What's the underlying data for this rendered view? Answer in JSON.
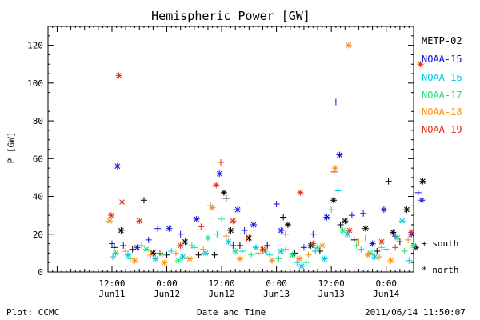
{
  "chart_data": {
    "type": "scatter",
    "title": "Hemispheric Power [GW]",
    "xlabel": "Date and Time",
    "ylabel": "P [GW]",
    "ylim": [
      0,
      130
    ],
    "xlim_hours": [
      -2,
      78
    ],
    "x_unit": "hours since 2011-06-11 00:00",
    "yticks": [
      0,
      20,
      40,
      60,
      80,
      100,
      120
    ],
    "xticks": [
      {
        "x": 12,
        "top": "12:00",
        "bottom": "Jun11"
      },
      {
        "x": 24,
        "top": "0:00",
        "bottom": "Jun12"
      },
      {
        "x": 36,
        "top": "12:00",
        "bottom": "Jun12"
      },
      {
        "x": 48,
        "top": "0:00",
        "bottom": "Jun13"
      },
      {
        "x": 60,
        "top": "12:00",
        "bottom": "Jun13"
      },
      {
        "x": 72,
        "top": "0:00",
        "bottom": "Jun14"
      }
    ],
    "legend_position": "right",
    "marker_legend": {
      "south": "+ south",
      "north": "* north"
    },
    "series": [
      {
        "name": "METP-02",
        "color": "#000000",
        "points": [
          {
            "x": 12.5,
            "y": 13,
            "m": "+"
          },
          {
            "x": 14.0,
            "y": 22,
            "m": "*"
          },
          {
            "x": 16.5,
            "y": 12,
            "m": "+"
          },
          {
            "x": 19.0,
            "y": 38,
            "m": "+"
          },
          {
            "x": 21.0,
            "y": 10,
            "m": "*"
          },
          {
            "x": 24.0,
            "y": 9,
            "m": "+"
          },
          {
            "x": 28.0,
            "y": 16,
            "m": "*"
          },
          {
            "x": 31.0,
            "y": 9,
            "m": "+"
          },
          {
            "x": 33.5,
            "y": 35,
            "m": "+"
          },
          {
            "x": 34.5,
            "y": 9,
            "m": "+"
          },
          {
            "x": 36.5,
            "y": 42,
            "m": "*"
          },
          {
            "x": 37.0,
            "y": 39,
            "m": "+"
          },
          {
            "x": 38.0,
            "y": 22,
            "m": "*"
          },
          {
            "x": 40.0,
            "y": 14,
            "m": "+"
          },
          {
            "x": 42.0,
            "y": 18,
            "m": "*"
          },
          {
            "x": 46.0,
            "y": 14,
            "m": "+"
          },
          {
            "x": 49.5,
            "y": 29,
            "m": "+"
          },
          {
            "x": 50.5,
            "y": 25,
            "m": "*"
          },
          {
            "x": 52.0,
            "y": 10,
            "m": "+"
          },
          {
            "x": 55.5,
            "y": 14,
            "m": "*"
          },
          {
            "x": 57.5,
            "y": 11,
            "m": "+"
          },
          {
            "x": 60.5,
            "y": 38,
            "m": "*"
          },
          {
            "x": 62.0,
            "y": 25,
            "m": "+"
          },
          {
            "x": 63.0,
            "y": 27,
            "m": "*"
          },
          {
            "x": 65.0,
            "y": 17,
            "m": "+"
          },
          {
            "x": 67.5,
            "y": 23,
            "m": "*"
          },
          {
            "x": 70.0,
            "y": 11,
            "m": "+"
          },
          {
            "x": 72.5,
            "y": 48,
            "m": "+"
          },
          {
            "x": 73.5,
            "y": 21,
            "m": "*"
          },
          {
            "x": 75.0,
            "y": 16,
            "m": "+"
          },
          {
            "x": 76.5,
            "y": 33,
            "m": "*"
          },
          {
            "x": 78.5,
            "y": 13,
            "m": "*"
          },
          {
            "x": 80.0,
            "y": 48,
            "m": "*"
          }
        ]
      },
      {
        "name": "NOAA-15",
        "color": "#1010e0",
        "points": [
          {
            "x": 12.0,
            "y": 15,
            "m": "+"
          },
          {
            "x": 13.2,
            "y": 56,
            "m": "*"
          },
          {
            "x": 14.5,
            "y": 14,
            "m": "+"
          },
          {
            "x": 17.5,
            "y": 13,
            "m": "*"
          },
          {
            "x": 20.0,
            "y": 17,
            "m": "+"
          },
          {
            "x": 22.0,
            "y": 23,
            "m": "+"
          },
          {
            "x": 24.5,
            "y": 23,
            "m": "*"
          },
          {
            "x": 27.0,
            "y": 20,
            "m": "+"
          },
          {
            "x": 30.5,
            "y": 28,
            "m": "*"
          },
          {
            "x": 35.5,
            "y": 52,
            "m": "*"
          },
          {
            "x": 38.5,
            "y": 14,
            "m": "+"
          },
          {
            "x": 39.5,
            "y": 33,
            "m": "*"
          },
          {
            "x": 41.0,
            "y": 22,
            "m": "+"
          },
          {
            "x": 43.0,
            "y": 25,
            "m": "*"
          },
          {
            "x": 48.0,
            "y": 36,
            "m": "+"
          },
          {
            "x": 49.0,
            "y": 22,
            "m": "*"
          },
          {
            "x": 54.0,
            "y": 13,
            "m": "+"
          },
          {
            "x": 56.0,
            "y": 20,
            "m": "+"
          },
          {
            "x": 59.0,
            "y": 29,
            "m": "*"
          },
          {
            "x": 61.0,
            "y": 90,
            "m": "+"
          },
          {
            "x": 61.8,
            "y": 62,
            "m": "*"
          },
          {
            "x": 64.5,
            "y": 30,
            "m": "+"
          },
          {
            "x": 67.0,
            "y": 31,
            "m": "+"
          },
          {
            "x": 69.0,
            "y": 15,
            "m": "*"
          },
          {
            "x": 71.5,
            "y": 33,
            "m": "*"
          },
          {
            "x": 74.0,
            "y": 19,
            "m": "+"
          },
          {
            "x": 77.5,
            "y": 20,
            "m": "*"
          },
          {
            "x": 79.0,
            "y": 42,
            "m": "+"
          },
          {
            "x": 79.8,
            "y": 38,
            "m": "*"
          }
        ]
      },
      {
        "name": "NOAA-16",
        "color": "#00c8e0",
        "points": [
          {
            "x": 12.2,
            "y": 8,
            "m": "+"
          },
          {
            "x": 15.5,
            "y": 9,
            "m": "*"
          },
          {
            "x": 18.5,
            "y": 14,
            "m": "+"
          },
          {
            "x": 21.5,
            "y": 7,
            "m": "*"
          },
          {
            "x": 25.0,
            "y": 11,
            "m": "+"
          },
          {
            "x": 27.5,
            "y": 8,
            "m": "*"
          },
          {
            "x": 30.0,
            "y": 13,
            "m": "+"
          },
          {
            "x": 32.5,
            "y": 10,
            "m": "*"
          },
          {
            "x": 35.0,
            "y": 20,
            "m": "+"
          },
          {
            "x": 37.5,
            "y": 16,
            "m": "*"
          },
          {
            "x": 40.5,
            "y": 11,
            "m": "+"
          },
          {
            "x": 43.5,
            "y": 13,
            "m": "*"
          },
          {
            "x": 46.5,
            "y": 9,
            "m": "+"
          },
          {
            "x": 49.0,
            "y": 11,
            "m": "*"
          },
          {
            "x": 52.5,
            "y": 5,
            "m": "+"
          },
          {
            "x": 53.5,
            "y": 3,
            "m": "*"
          },
          {
            "x": 56.5,
            "y": 11,
            "m": "+"
          },
          {
            "x": 58.5,
            "y": 7,
            "m": "*"
          },
          {
            "x": 61.5,
            "y": 43,
            "m": "+"
          },
          {
            "x": 63.5,
            "y": 20,
            "m": "*"
          },
          {
            "x": 66.5,
            "y": 12,
            "m": "+"
          },
          {
            "x": 69.5,
            "y": 8,
            "m": "*"
          },
          {
            "x": 72.0,
            "y": 12,
            "m": "+"
          },
          {
            "x": 75.5,
            "y": 27,
            "m": "*"
          },
          {
            "x": 77.0,
            "y": 6,
            "m": "+"
          }
        ]
      },
      {
        "name": "NOAA-17",
        "color": "#20e080",
        "points": [
          {
            "x": 12.8,
            "y": 10,
            "m": "*"
          },
          {
            "x": 16.0,
            "y": 7,
            "m": "+"
          },
          {
            "x": 19.5,
            "y": 12,
            "m": "*"
          },
          {
            "x": 23.0,
            "y": 9,
            "m": "+"
          },
          {
            "x": 26.5,
            "y": 6,
            "m": "*"
          },
          {
            "x": 29.5,
            "y": 14,
            "m": "+"
          },
          {
            "x": 33.0,
            "y": 18,
            "m": "*"
          },
          {
            "x": 36.0,
            "y": 28,
            "m": "+"
          },
          {
            "x": 39.0,
            "y": 11,
            "m": "*"
          },
          {
            "x": 42.5,
            "y": 9,
            "m": "+"
          },
          {
            "x": 45.5,
            "y": 11,
            "m": "*"
          },
          {
            "x": 48.5,
            "y": 7,
            "m": "+"
          },
          {
            "x": 51.5,
            "y": 9,
            "m": "*"
          },
          {
            "x": 54.5,
            "y": 5,
            "m": "+"
          },
          {
            "x": 57.0,
            "y": 13,
            "m": "*"
          },
          {
            "x": 60.0,
            "y": 33,
            "m": "+"
          },
          {
            "x": 62.5,
            "y": 22,
            "m": "*"
          },
          {
            "x": 65.5,
            "y": 14,
            "m": "+"
          },
          {
            "x": 68.5,
            "y": 10,
            "m": "*"
          },
          {
            "x": 71.0,
            "y": 13,
            "m": "+"
          },
          {
            "x": 74.5,
            "y": 18,
            "m": "*"
          },
          {
            "x": 76.0,
            "y": 11,
            "m": "+"
          },
          {
            "x": 78.0,
            "y": 14,
            "m": "*"
          }
        ]
      },
      {
        "name": "NOAA-18",
        "color": "#ff9010",
        "points": [
          {
            "x": 11.5,
            "y": 27,
            "m": "*"
          },
          {
            "x": 15.0,
            "y": 11,
            "m": "+"
          },
          {
            "x": 17.0,
            "y": 6,
            "m": "*"
          },
          {
            "x": 20.5,
            "y": 9,
            "m": "+"
          },
          {
            "x": 23.5,
            "y": 5,
            "m": "*"
          },
          {
            "x": 26.0,
            "y": 10,
            "m": "+"
          },
          {
            "x": 29.0,
            "y": 7,
            "m": "*"
          },
          {
            "x": 32.0,
            "y": 12,
            "m": "+"
          },
          {
            "x": 34.0,
            "y": 34,
            "m": "*"
          },
          {
            "x": 37.0,
            "y": 19,
            "m": "+"
          },
          {
            "x": 40.0,
            "y": 7,
            "m": "*"
          },
          {
            "x": 44.0,
            "y": 10,
            "m": "+"
          },
          {
            "x": 47.0,
            "y": 6,
            "m": "*"
          },
          {
            "x": 50.0,
            "y": 12,
            "m": "+"
          },
          {
            "x": 53.0,
            "y": 7,
            "m": "*"
          },
          {
            "x": 55.0,
            "y": 9,
            "m": "+"
          },
          {
            "x": 58.0,
            "y": 14,
            "m": "*"
          },
          {
            "x": 60.8,
            "y": 55,
            "m": "*"
          },
          {
            "x": 63.8,
            "y": 120,
            "m": "*"
          },
          {
            "x": 66.0,
            "y": 16,
            "m": "+"
          },
          {
            "x": 68.0,
            "y": 9,
            "m": "*"
          },
          {
            "x": 70.5,
            "y": 8,
            "m": "+"
          },
          {
            "x": 73.0,
            "y": 6,
            "m": "*"
          },
          {
            "x": 76.8,
            "y": 17,
            "m": "+"
          }
        ]
      },
      {
        "name": "NOAA-19",
        "color": "#e03010",
        "points": [
          {
            "x": 11.8,
            "y": 30,
            "m": "*"
          },
          {
            "x": 13.5,
            "y": 104,
            "m": "*"
          },
          {
            "x": 14.2,
            "y": 37,
            "m": "*"
          },
          {
            "x": 18.0,
            "y": 27,
            "m": "*"
          },
          {
            "x": 22.5,
            "y": 10,
            "m": "+"
          },
          {
            "x": 27.0,
            "y": 14,
            "m": "*"
          },
          {
            "x": 31.5,
            "y": 24,
            "m": "+"
          },
          {
            "x": 34.8,
            "y": 46,
            "m": "*"
          },
          {
            "x": 35.8,
            "y": 58,
            "m": "+"
          },
          {
            "x": 38.5,
            "y": 27,
            "m": "*"
          },
          {
            "x": 41.5,
            "y": 18,
            "m": "+"
          },
          {
            "x": 45.0,
            "y": 12,
            "m": "*"
          },
          {
            "x": 50.0,
            "y": 20,
            "m": "+"
          },
          {
            "x": 53.2,
            "y": 42,
            "m": "*"
          },
          {
            "x": 56.0,
            "y": 15,
            "m": "*"
          },
          {
            "x": 60.6,
            "y": 53,
            "m": "+"
          },
          {
            "x": 64.0,
            "y": 22,
            "m": "*"
          },
          {
            "x": 67.5,
            "y": 18,
            "m": "+"
          },
          {
            "x": 71.0,
            "y": 16,
            "m": "*"
          },
          {
            "x": 74.0,
            "y": 13,
            "m": "+"
          },
          {
            "x": 77.5,
            "y": 21,
            "m": "*"
          },
          {
            "x": 79.5,
            "y": 110,
            "m": "*"
          }
        ]
      }
    ]
  },
  "footer": {
    "left": "Plot: CCMC",
    "center": "Date and Time",
    "right": "2011/06/14 11:50:07"
  }
}
